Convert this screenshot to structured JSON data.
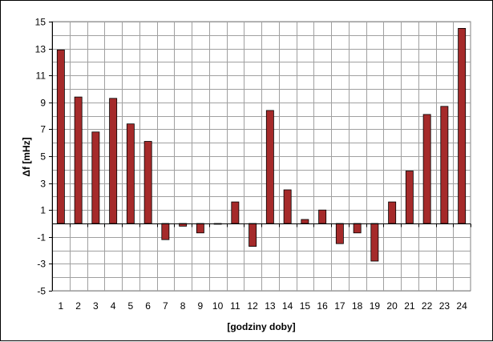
{
  "chart_data": {
    "type": "bar",
    "categories": [
      "1",
      "2",
      "3",
      "4",
      "5",
      "6",
      "7",
      "8",
      "9",
      "10",
      "11",
      "12",
      "13",
      "14",
      "15",
      "16",
      "17",
      "18",
      "19",
      "20",
      "21",
      "22",
      "23",
      "24"
    ],
    "series": [
      {
        "values": [
          12.9,
          9.4,
          6.8,
          9.3,
          7.4,
          6.1,
          -1.2,
          -0.2,
          -0.7,
          -0.05,
          1.6,
          -1.7,
          8.4,
          2.5,
          0.3,
          1.0,
          -1.5,
          -0.7,
          -2.8,
          1.6,
          3.9,
          8.1,
          8.7,
          14.5
        ],
        "color": "#a52a2a"
      }
    ],
    "xlabel": "[godziny doby]",
    "ylabel": "Δf [mHz]",
    "ylim": [
      -5,
      15
    ],
    "yticks": [
      "-5",
      "-3",
      "-1",
      "1",
      "3",
      "5",
      "7",
      "9",
      "11",
      "13",
      "15"
    ],
    "grid": true,
    "legend": "none"
  }
}
